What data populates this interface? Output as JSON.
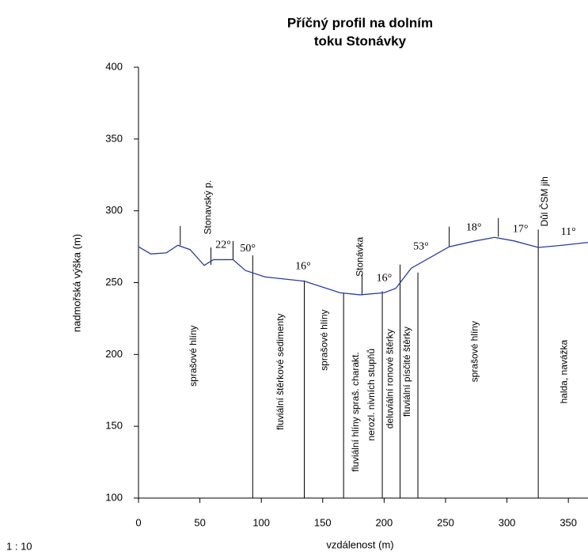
{
  "chart_data": {
    "type": "line",
    "title": [
      "Příčný profil na dolním",
      "toku Stonávky"
    ],
    "xlabel": "vzdálenost (m)",
    "ylabel": "nadmořská výška (m)",
    "scale_note": "1 : 10",
    "xlim": [
      0,
      366
    ],
    "ylim": [
      100,
      400
    ],
    "xticks": [
      0,
      50,
      100,
      150,
      200,
      250,
      300,
      350
    ],
    "yticks": [
      100,
      150,
      200,
      250,
      300,
      350,
      400
    ],
    "series": [
      {
        "color": "#2a3c9c",
        "x": [
          0,
          10,
          22.6,
          32,
          42,
          53.5,
          61,
          77,
          87,
          103,
          135,
          164,
          180.5,
          200,
          209.5,
          222,
          253,
          274,
          290,
          306,
          325.5,
          345,
          366
        ],
        "values": [
          275,
          270,
          270.7,
          276,
          273,
          262,
          266,
          266,
          258.5,
          254,
          251,
          243,
          241.5,
          243,
          246,
          260,
          275,
          279,
          281.5,
          279,
          274.5,
          276,
          278
        ]
      }
    ],
    "dividers": [
      {
        "x": 93,
        "top": 269
      },
      {
        "x": 135,
        "top": 251.5
      },
      {
        "x": 167,
        "top": 243
      },
      {
        "x": 198.5,
        "top": 244
      },
      {
        "x": 213,
        "top": 262.5
      },
      {
        "x": 227.5,
        "top": 257
      },
      {
        "x": 325.5,
        "top": 287
      }
    ],
    "markers": [
      {
        "x": 34,
        "bottom": 276,
        "top": 289.4
      },
      {
        "x": 59,
        "bottom": 262.4,
        "top": 274.5
      },
      {
        "x": 77,
        "bottom": 266,
        "top": 279
      },
      {
        "x": 182,
        "bottom": 242,
        "top": 256
      },
      {
        "x": 253,
        "bottom": 275,
        "top": 289
      },
      {
        "x": 293,
        "bottom": 282,
        "top": 295
      }
    ],
    "vertical_labels": [
      {
        "text": "sprašové hlíny",
        "x": 45,
        "y": 199
      },
      {
        "text": "fluviální štěrkové sedimenty",
        "x": 116,
        "y": 188
      },
      {
        "text": "sprašové hlíny",
        "x": 151.5,
        "y": 210
      },
      {
        "text": "fluviální hlíny spraš. charakt.",
        "x": 177,
        "y": 160
      },
      {
        "text": "nerozl. nivních stupňů",
        "x": 190,
        "y": 172
      },
      {
        "text": "deluviální ronové štěrky",
        "x": 205,
        "y": 183
      },
      {
        "text": "fluviální písčité štěrky",
        "x": 219,
        "y": 188
      },
      {
        "text": "sprašové hlíny",
        "x": 274,
        "y": 202
      },
      {
        "text": "halda, navážka",
        "x": 347,
        "y": 188
      },
      {
        "text": "Stonavský p.",
        "x": 57,
        "y": 302.5
      },
      {
        "text": "Stonávka",
        "x": 180.5,
        "y": 268
      },
      {
        "text": "Důl ČSM jih",
        "x": 331,
        "y": 306.5
      }
    ],
    "angle_labels": [
      {
        "text": "22°",
        "x": 69,
        "y": 276
      },
      {
        "text": "50°",
        "x": 89,
        "y": 273.5
      },
      {
        "text": "16°",
        "x": 134,
        "y": 261
      },
      {
        "text": "16°",
        "x": 200,
        "y": 253
      },
      {
        "text": "53°",
        "x": 230,
        "y": 275
      },
      {
        "text": "18°",
        "x": 273,
        "y": 288
      },
      {
        "text": "17°",
        "x": 311,
        "y": 287
      },
      {
        "text": "11°",
        "x": 350,
        "y": 285
      }
    ]
  }
}
